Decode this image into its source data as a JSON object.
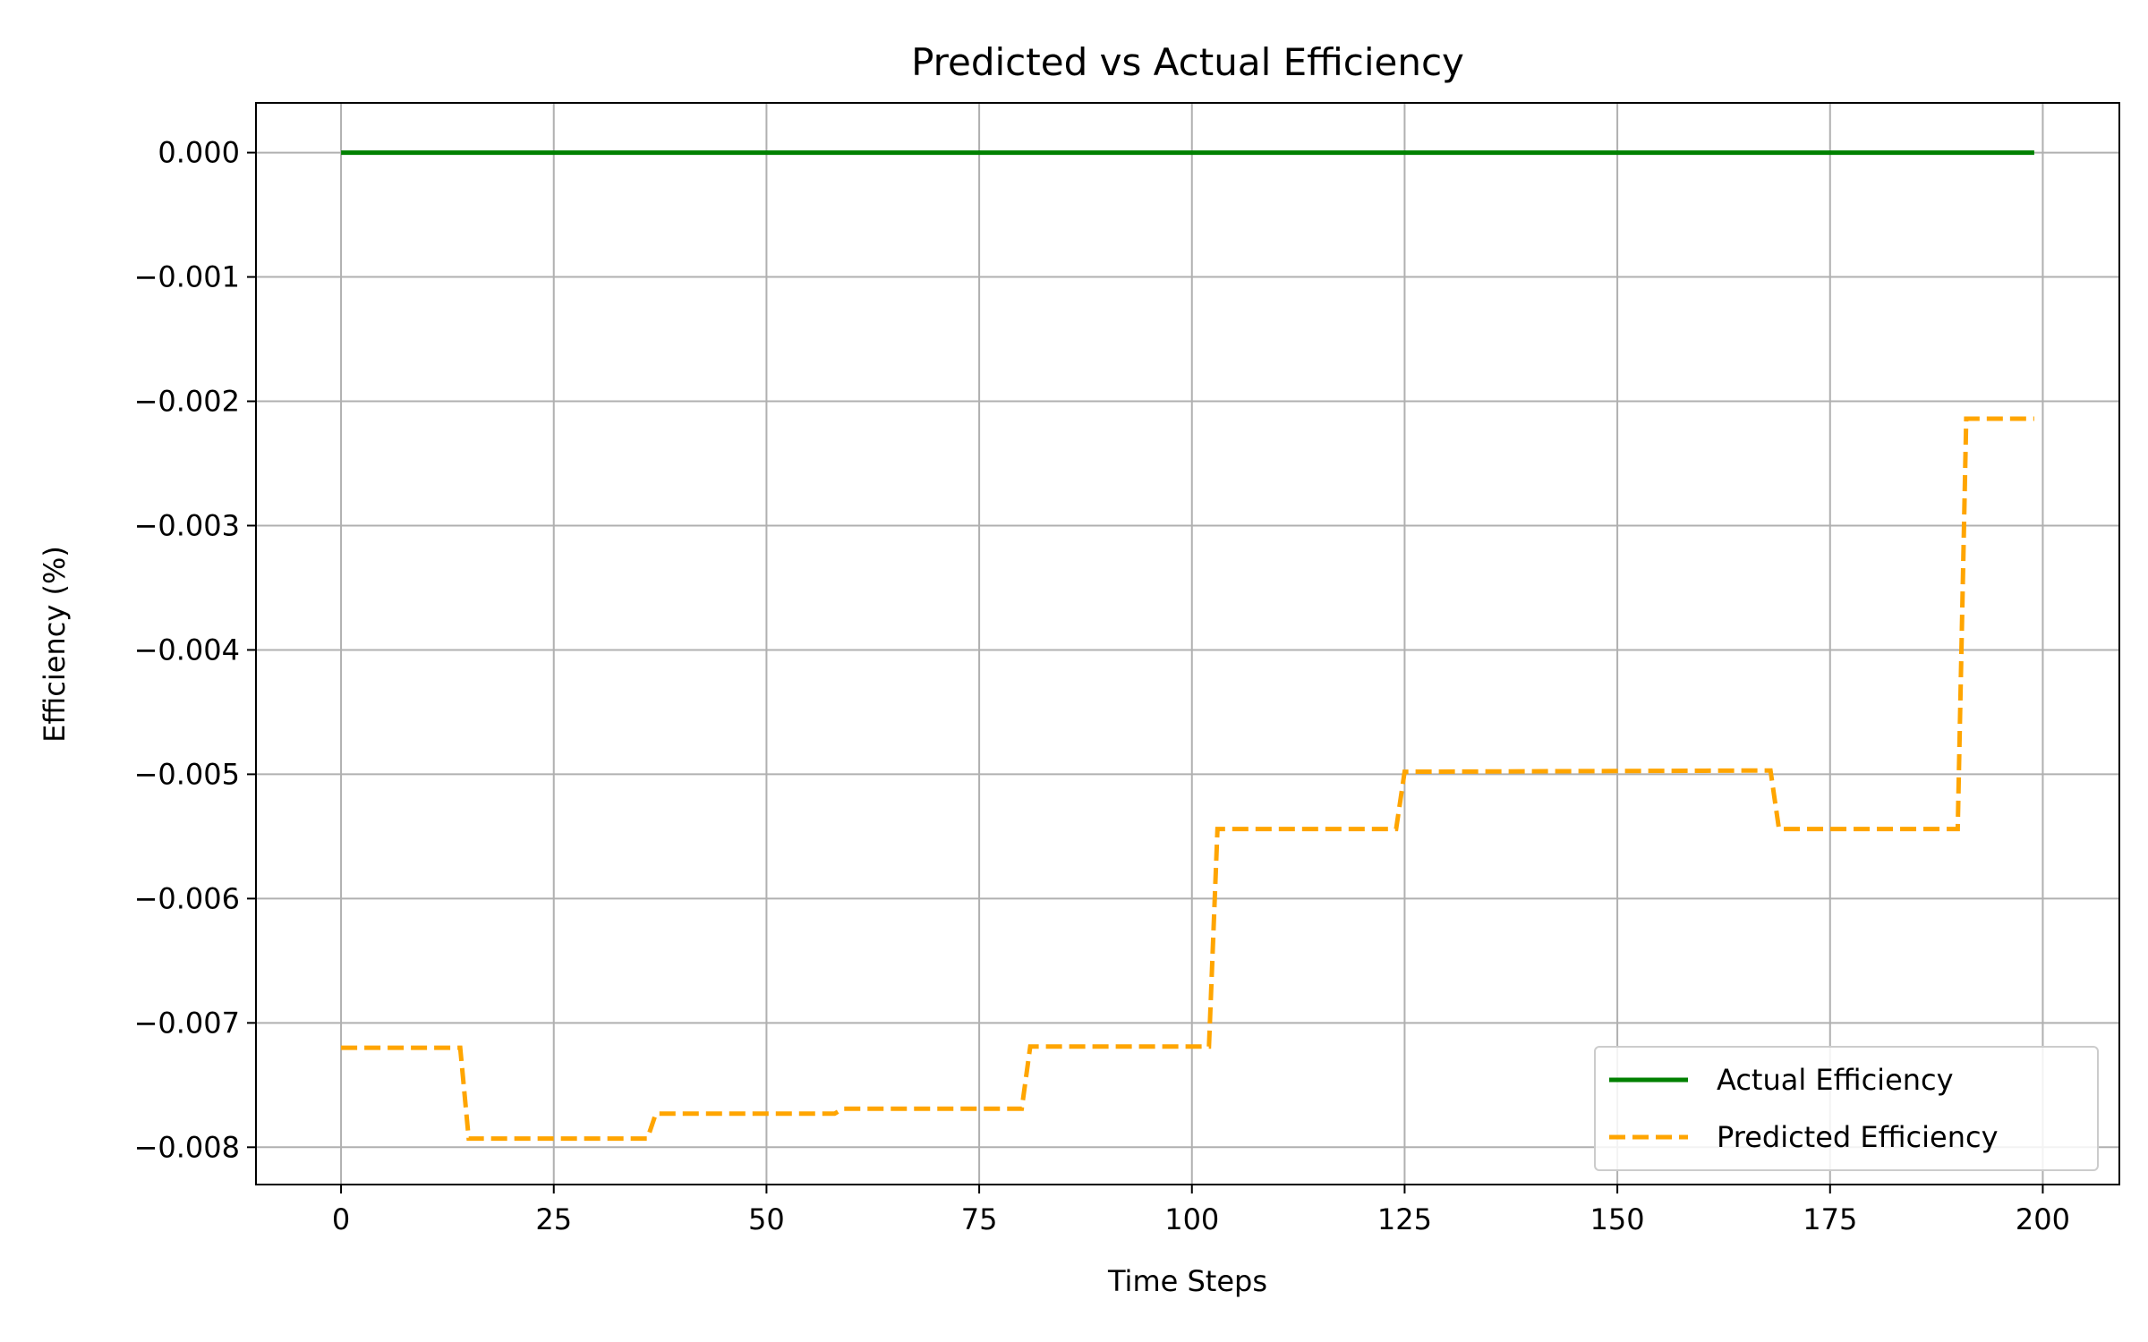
{
  "chart_data": {
    "type": "line",
    "title": "Predicted vs Actual Efficiency",
    "xlabel": "Time Steps",
    "ylabel": "Efficiency (%)",
    "xlim": [
      -10,
      209
    ],
    "ylim": [
      -0.0083,
      0.0004
    ],
    "x_ticks": [
      0,
      25,
      50,
      75,
      100,
      125,
      150,
      175,
      200
    ],
    "x_tick_labels": [
      "0",
      "25",
      "50",
      "75",
      "100",
      "125",
      "150",
      "175",
      "200"
    ],
    "y_ticks": [
      0.0,
      -0.001,
      -0.002,
      -0.003,
      -0.004,
      -0.005,
      -0.006,
      -0.007,
      -0.008
    ],
    "y_tick_labels": [
      "0.000",
      "−0.001",
      "−0.002",
      "−0.003",
      "−0.004",
      "−0.005",
      "−0.006",
      "−0.007",
      "−0.008"
    ],
    "grid": true,
    "legend_position": "lower-right",
    "series": [
      {
        "name": "Actual Efficiency",
        "color": "#008000",
        "style": "solid",
        "x": [
          0,
          199
        ],
        "y": [
          0.0,
          0.0
        ]
      },
      {
        "name": "Predicted Efficiency",
        "color": "#FFA500",
        "style": "dashed",
        "x": [
          0,
          14,
          15,
          36,
          37,
          58,
          59,
          80,
          81,
          102,
          103,
          124,
          125,
          168,
          169,
          190,
          191,
          199
        ],
        "y": [
          -0.0072,
          -0.0072,
          -0.00793,
          -0.00793,
          -0.00773,
          -0.00773,
          -0.00769,
          -0.00769,
          -0.00719,
          -0.00719,
          -0.00544,
          -0.00544,
          -0.00498,
          -0.00497,
          -0.00544,
          -0.00544,
          -0.00214,
          -0.00214
        ]
      }
    ]
  }
}
